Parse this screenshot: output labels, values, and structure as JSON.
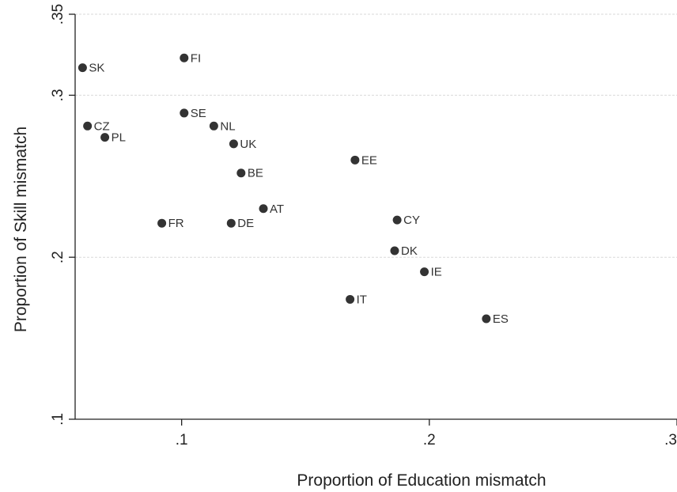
{
  "chart_data": {
    "type": "scatter",
    "xlabel": "Proportion of Education mismatch",
    "ylabel": "Proportion of Skill mismatch",
    "xlim": [
      0.057,
      0.3
    ],
    "ylim": [
      0.1,
      0.35
    ],
    "xticks": [
      0.1,
      0.2,
      0.3
    ],
    "xtick_labels": [
      ".1",
      ".2",
      ".3"
    ],
    "yticks": [
      0.1,
      0.2,
      0.3,
      0.35
    ],
    "ytick_labels": [
      ".1",
      ".2",
      ".3",
      ".35"
    ],
    "grid": true,
    "marker_color": "#333333",
    "points": [
      {
        "label": "SK",
        "x": 0.06,
        "y": 0.317
      },
      {
        "label": "FI",
        "x": 0.101,
        "y": 0.323
      },
      {
        "label": "CZ",
        "x": 0.062,
        "y": 0.281
      },
      {
        "label": "PL",
        "x": 0.069,
        "y": 0.274
      },
      {
        "label": "SE",
        "x": 0.101,
        "y": 0.289
      },
      {
        "label": "NL",
        "x": 0.113,
        "y": 0.281
      },
      {
        "label": "UK",
        "x": 0.121,
        "y": 0.27
      },
      {
        "label": "BE",
        "x": 0.124,
        "y": 0.252
      },
      {
        "label": "EE",
        "x": 0.17,
        "y": 0.26
      },
      {
        "label": "AT",
        "x": 0.133,
        "y": 0.23
      },
      {
        "label": "FR",
        "x": 0.092,
        "y": 0.221
      },
      {
        "label": "DE",
        "x": 0.12,
        "y": 0.221
      },
      {
        "label": "CY",
        "x": 0.187,
        "y": 0.223
      },
      {
        "label": "DK",
        "x": 0.186,
        "y": 0.204
      },
      {
        "label": "IE",
        "x": 0.198,
        "y": 0.191
      },
      {
        "label": "IT",
        "x": 0.168,
        "y": 0.174
      },
      {
        "label": "ES",
        "x": 0.223,
        "y": 0.162
      }
    ]
  }
}
